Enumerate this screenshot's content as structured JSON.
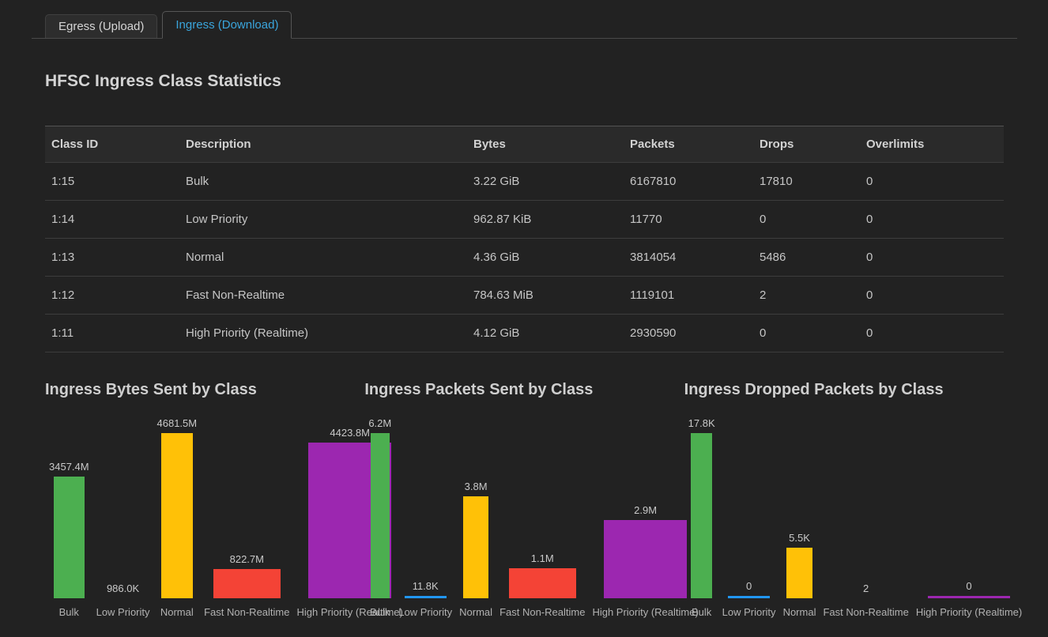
{
  "tabs": [
    {
      "label": "Egress (Upload)",
      "active": false
    },
    {
      "label": "Ingress (Download)",
      "active": true
    }
  ],
  "heading": "HFSC Ingress Class Statistics",
  "table": {
    "columns": [
      "Class ID",
      "Description",
      "Bytes",
      "Packets",
      "Drops",
      "Overlimits"
    ],
    "rows": [
      [
        "1:15",
        "Bulk",
        "3.22 GiB",
        "6167810",
        "17810",
        "0"
      ],
      [
        "1:14",
        "Low Priority",
        "962.87 KiB",
        "11770",
        "0",
        "0"
      ],
      [
        "1:13",
        "Normal",
        "4.36 GiB",
        "3814054",
        "5486",
        "0"
      ],
      [
        "1:12",
        "Fast Non-Realtime",
        "784.63 MiB",
        "1119101",
        "2",
        "0"
      ],
      [
        "1:11",
        "High Priority (Realtime)",
        "4.12 GiB",
        "2930590",
        "0",
        "0"
      ]
    ]
  },
  "theme": {
    "accent": "#3aa5dc",
    "background": "#222222"
  },
  "chart_data": [
    {
      "type": "bar",
      "title": "Ingress Bytes Sent by Class",
      "categories": [
        "Bulk",
        "Low Priority",
        "Normal",
        "Fast Non-Realtime",
        "High Priority (Realtime)"
      ],
      "values": [
        3457400000,
        986000,
        4681500000,
        822700000,
        4423800000
      ],
      "value_labels": [
        "3457.4M",
        "986.0K",
        "4681.5M",
        "822.7M",
        "4423.8M"
      ],
      "bar_colors": [
        "#4caf50",
        "#2196f3",
        "#ffc107",
        "#f44336",
        "#9c27b0"
      ],
      "bar_styles": [
        "bar",
        "bar",
        "bar",
        "bar",
        "bar"
      ],
      "xlabel": "",
      "ylabel": "",
      "ylim": [
        0,
        4681500000
      ],
      "grid": false,
      "legend": false
    },
    {
      "type": "bar",
      "title": "Ingress Packets Sent by Class",
      "categories": [
        "Bulk",
        "Low Priority",
        "Normal",
        "Fast Non-Realtime",
        "High Priority (Realtime)"
      ],
      "values": [
        6167810,
        11770,
        3814054,
        1119101,
        2930590
      ],
      "value_labels": [
        "6.2M",
        "11.8K",
        "3.8M",
        "1.1M",
        "2.9M"
      ],
      "bar_colors": [
        "#4caf50",
        "#2196f3",
        "#ffc107",
        "#f44336",
        "#9c27b0"
      ],
      "bar_styles": [
        "bar",
        "line",
        "bar",
        "bar",
        "bar"
      ],
      "xlabel": "",
      "ylabel": "",
      "ylim": [
        0,
        6167810
      ],
      "grid": false,
      "legend": false
    },
    {
      "type": "bar",
      "title": "Ingress Dropped Packets by Class",
      "categories": [
        "Bulk",
        "Low Priority",
        "Normal",
        "Fast Non-Realtime",
        "High Priority (Realtime)"
      ],
      "values": [
        17810,
        0,
        5486,
        2,
        0
      ],
      "value_labels": [
        "17.8K",
        "0",
        "5.5K",
        "2",
        "0"
      ],
      "bar_colors": [
        "#4caf50",
        "#2196f3",
        "#ffc107",
        "#f44336",
        "#9c27b0"
      ],
      "bar_styles": [
        "bar",
        "line",
        "bar",
        "bar",
        "line"
      ],
      "xlabel": "",
      "ylabel": "",
      "ylim": [
        0,
        17810
      ],
      "grid": false,
      "legend": false
    }
  ]
}
